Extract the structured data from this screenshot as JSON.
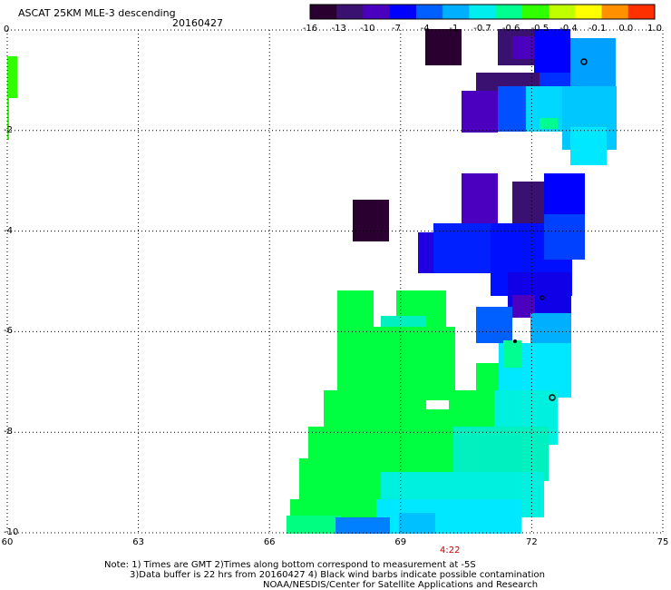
{
  "header": {
    "title": "ASCAT 25KM MLE-3 descending",
    "date": "20160427"
  },
  "colorbar": {
    "labels": [
      "-16",
      "-13",
      "-10",
      "-7",
      "-4",
      "-1",
      "-0.7",
      "-0.6",
      "-0.5",
      "-0.4",
      "-0.1",
      "0.0",
      "1.0"
    ],
    "colors": [
      "#2a0030",
      "#3a1070",
      "#4b00c0",
      "#0000ff",
      "#0060ff",
      "#00b0ff",
      "#00eeee",
      "#00ff90",
      "#30ff00",
      "#c0ff00",
      "#ffff00",
      "#ff9000",
      "#ff3000"
    ]
  },
  "axes": {
    "x_ticks": [
      "60",
      "63",
      "66",
      "69",
      "72",
      "75"
    ],
    "y_ticks": [
      "0",
      "-2",
      "-4",
      "-6",
      "-8",
      "-10"
    ],
    "x_range": [
      60,
      75
    ],
    "y_range": [
      -10,
      0
    ]
  },
  "time_label": "4:22",
  "notes": {
    "line1": "Note: 1) Times are GMT 2)Times along bottom correspond to measurement at -5S",
    "line2": "3)Data buffer is 22 hrs from 20160427 4) Black wind barbs indicate possible contamination",
    "credit": "NOAA/NESDIS/Center for Satellite Applications and Research"
  }
}
